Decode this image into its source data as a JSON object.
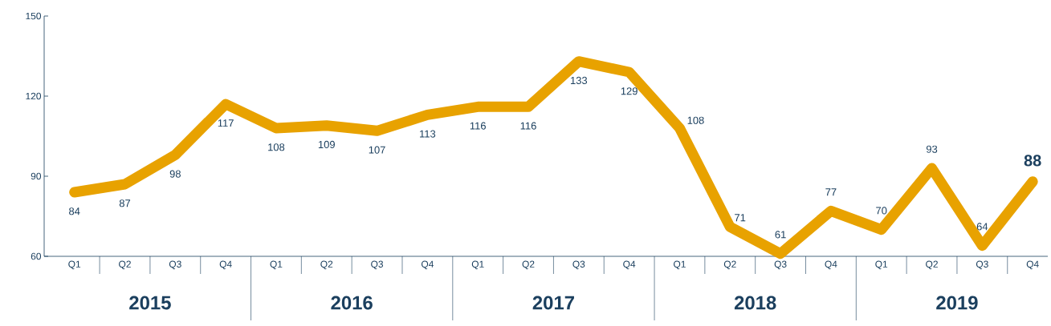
{
  "chart_data": {
    "type": "line",
    "categories": [
      "Q1",
      "Q2",
      "Q3",
      "Q4",
      "Q1",
      "Q2",
      "Q3",
      "Q4",
      "Q1",
      "Q2",
      "Q3",
      "Q4",
      "Q1",
      "Q2",
      "Q3",
      "Q4",
      "Q1",
      "Q2",
      "Q3",
      "Q4"
    ],
    "values": [
      84,
      87,
      98,
      117,
      108,
      109,
      107,
      113,
      116,
      116,
      133,
      129,
      108,
      71,
      61,
      77,
      70,
      93,
      64,
      88
    ],
    "color": "#e8a200",
    "ylim": [
      60,
      150
    ],
    "yticks": [
      60,
      90,
      120,
      150
    ],
    "data_labels": true,
    "marker": "none",
    "line_style": "solid",
    "annotations": [
      "2015",
      "2016",
      "2017",
      "2018",
      "2019"
    ]
  }
}
